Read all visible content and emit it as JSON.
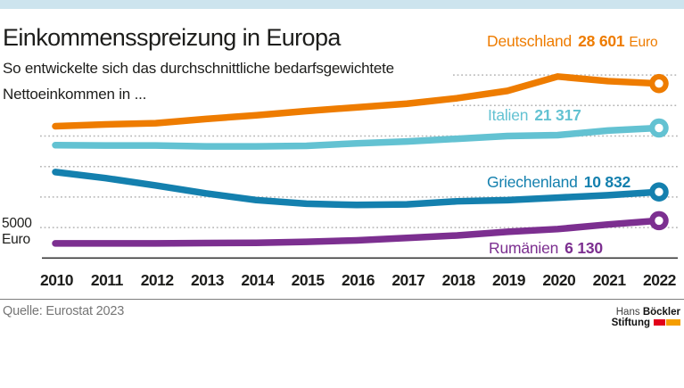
{
  "topbar": {
    "color": "#cde4ee"
  },
  "header": {
    "title": "Einkommensspreizung in Europa",
    "subtitle_line1": "So entwickelte sich das durchschnittliche bedarfsgewichtete",
    "subtitle_line2": "Nettoeinkommen in ..."
  },
  "chart_data": {
    "type": "line",
    "x": [
      2010,
      2011,
      2012,
      2013,
      2014,
      2015,
      2016,
      2017,
      2018,
      2019,
      2020,
      2021,
      2022
    ],
    "series": [
      {
        "name": "Deutschland",
        "color": "#ee7c00",
        "values": [
          21600,
          21900,
          22100,
          22800,
          23400,
          24100,
          24700,
          25300,
          26200,
          27400,
          29750,
          29000,
          28601
        ],
        "end_label": "28 601",
        "end_label_suffix": "Euro"
      },
      {
        "name": "Italien",
        "color": "#63c2d2",
        "values": [
          18500,
          18450,
          18450,
          18300,
          18300,
          18400,
          18800,
          19100,
          19550,
          20000,
          20150,
          20900,
          21317
        ],
        "end_label": "21 317",
        "end_label_suffix": ""
      },
      {
        "name": "Griechenland",
        "color": "#1480ae",
        "values": [
          14100,
          13100,
          11900,
          10600,
          9500,
          8900,
          8700,
          8800,
          9300,
          9500,
          9900,
          10300,
          10832
        ],
        "end_label": "10 832",
        "end_label_suffix": ""
      },
      {
        "name": "Rumänien",
        "color": "#7c2f90",
        "values": [
          2400,
          2400,
          2400,
          2450,
          2500,
          2650,
          2900,
          3300,
          3700,
          4300,
          4750,
          5500,
          6130
        ],
        "end_label": "6 130",
        "end_label_suffix": ""
      }
    ],
    "y_axis_label_line1": "5000",
    "y_axis_label_line2": "Euro",
    "ylim": [
      0,
      32000
    ],
    "gridline_values": [
      5000,
      10000,
      15000,
      20000,
      25000,
      30000
    ],
    "grid": "dotted-horizontal",
    "gridline_color": "#b5b5b5",
    "axis_color": "#3a3a3a",
    "legend_position": "labels-right-of-chart"
  },
  "footer": {
    "source": "Quelle: Eurostat 2023",
    "logo": {
      "line1_regular": "Hans",
      "line1_bold": "Böckler",
      "line2_bold": "Stiftung",
      "block1_color": "#e2001a",
      "block2_color": "#f59e00"
    }
  }
}
